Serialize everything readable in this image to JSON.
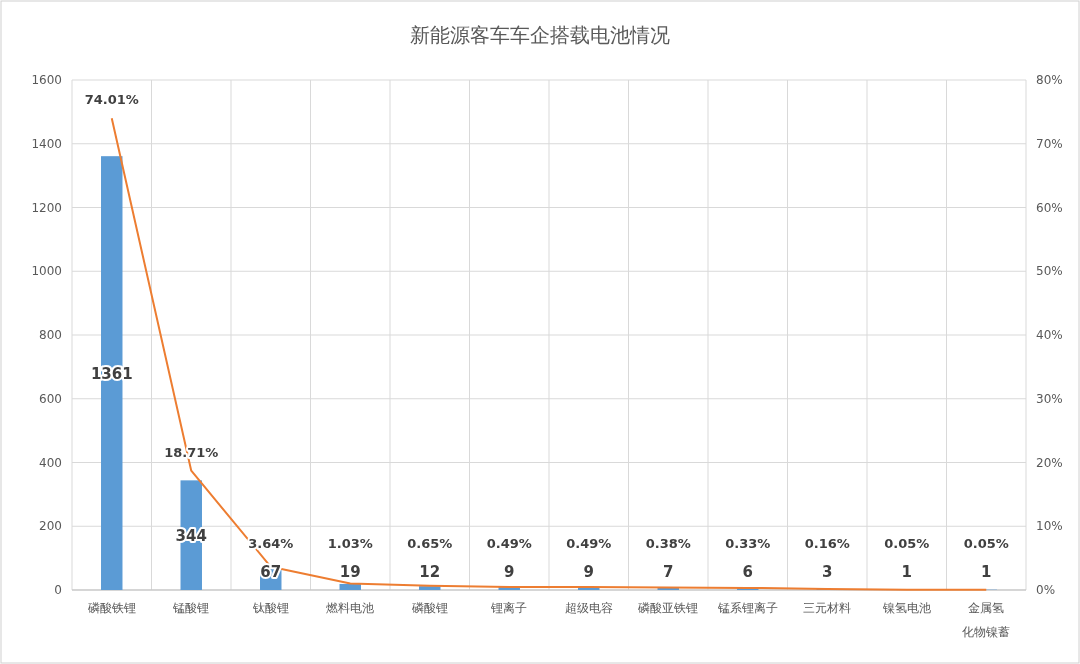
{
  "chart_data": {
    "type": "bar",
    "title": "新能源客车车企搭载电池情况",
    "categories": [
      "磷酸铁锂",
      "锰酸锂",
      "钛酸锂",
      "燃料电池",
      "磷酸锂",
      "锂离子",
      "超级电容",
      "磷酸亚铁锂",
      "锰系锂离子",
      "三元材料",
      "镍氢电池",
      "金属氢化物镍蓄"
    ],
    "ylim": [
      0,
      1600
    ],
    "yticks": [
      0,
      200,
      400,
      600,
      800,
      1000,
      1200,
      1400,
      1600
    ],
    "y2lim": [
      0,
      80
    ],
    "y2ticks": [
      {
        "value": 0,
        "label": "0%"
      },
      {
        "value": 10,
        "label": "10%"
      },
      {
        "value": 20,
        "label": "20%"
      },
      {
        "value": 30,
        "label": "30%"
      },
      {
        "value": 40,
        "label": "40%"
      },
      {
        "value": 50,
        "label": "50%"
      },
      {
        "value": 60,
        "label": "60%"
      },
      {
        "value": 70,
        "label": "70%"
      },
      {
        "value": 80,
        "label": "80%"
      }
    ],
    "grid": true,
    "series": [
      {
        "color": "#5b9bd5",
        "values": [
          1361,
          344,
          67,
          19,
          12,
          9,
          9,
          7,
          6,
          3,
          1,
          1
        ],
        "value_labels": [
          "1361",
          "344",
          "67",
          "19",
          "12",
          "9",
          "9",
          "7",
          "6",
          "3",
          "1",
          "1"
        ]
      },
      {
        "type": "line",
        "axis": "y2",
        "color": "#ed7d31",
        "values": [
          74.01,
          18.71,
          3.64,
          1.03,
          0.65,
          0.49,
          0.49,
          0.38,
          0.33,
          0.16,
          0.05,
          0.05
        ],
        "value_labels": [
          "74.01%",
          "18.71%",
          "3.64%",
          "1.03%",
          "0.65%",
          "0.49%",
          "0.49%",
          "0.38%",
          "0.33%",
          "0.16%",
          "0.05%",
          "0.05%"
        ]
      }
    ]
  }
}
